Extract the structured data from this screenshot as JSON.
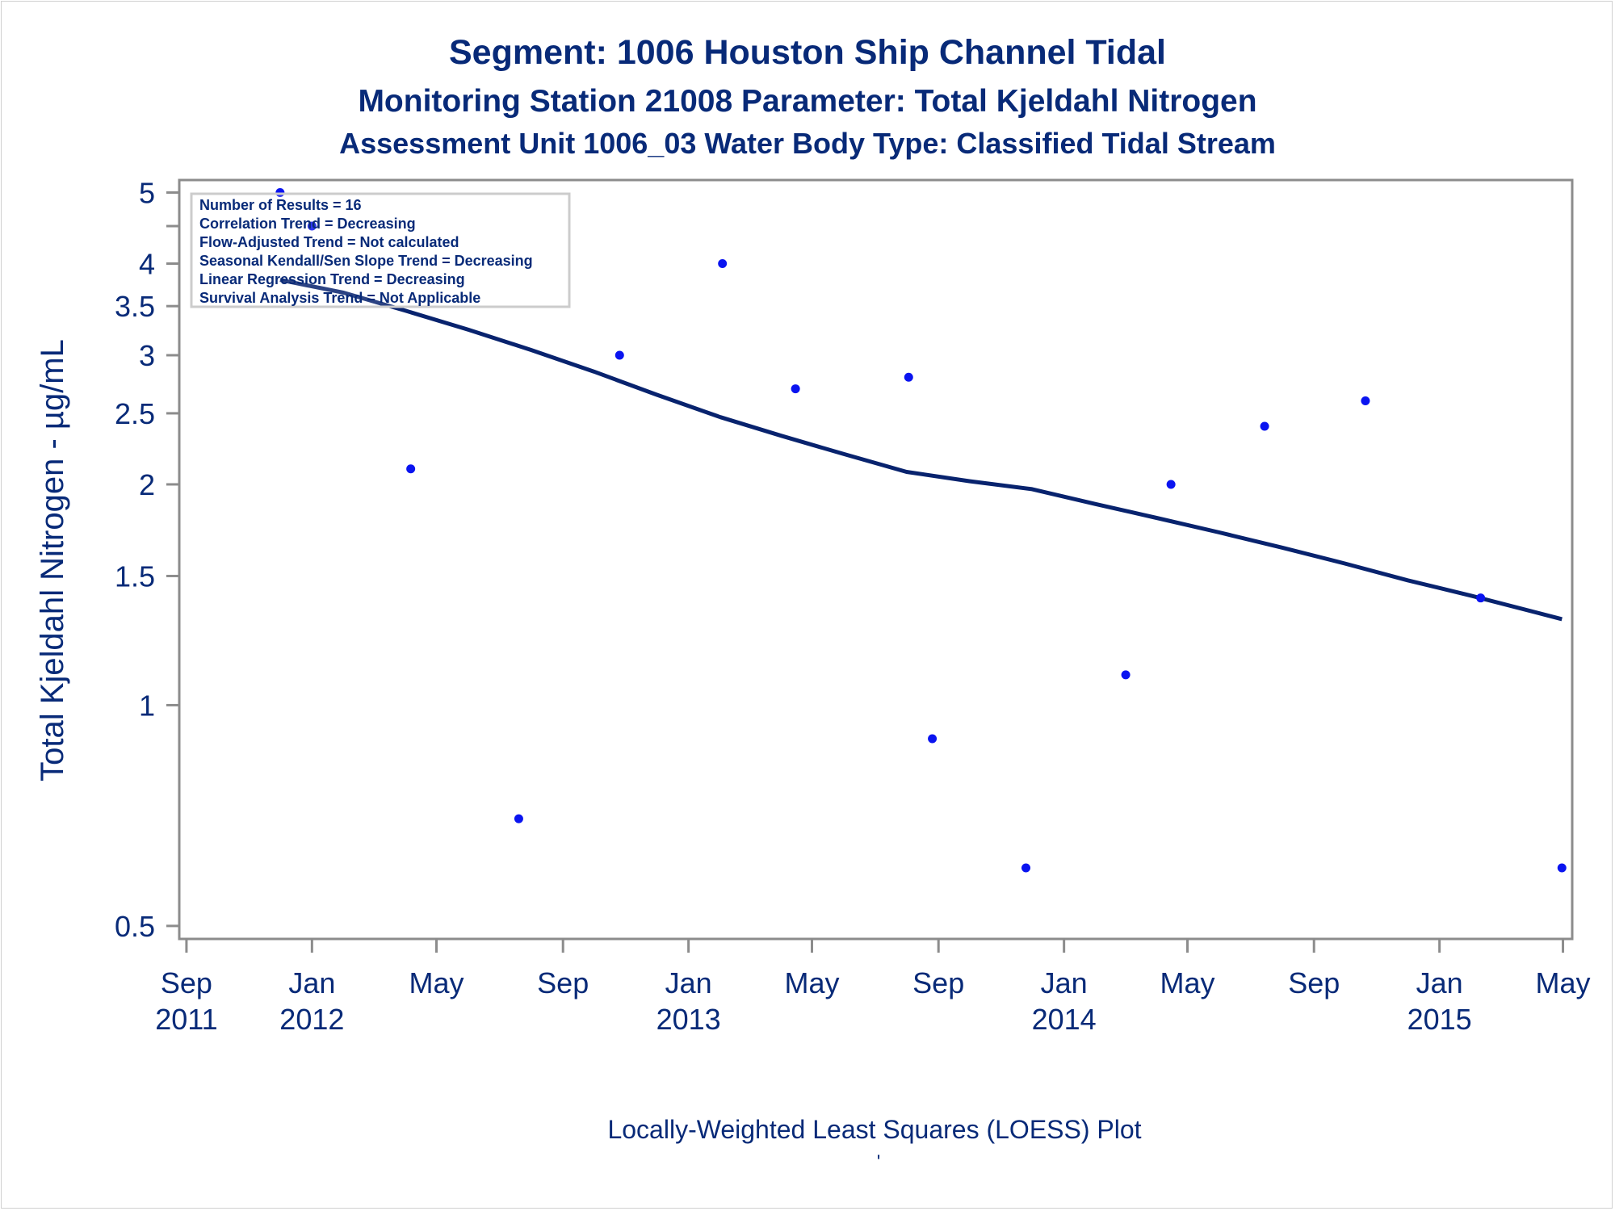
{
  "chart_data": {
    "type": "scatter",
    "title": "Segment: 1006  Houston Ship Channel Tidal",
    "subtitle": "Monitoring Station 21008 Parameter: Total Kjeldahl Nitrogen",
    "subtitle2": "Assessment Unit 1006_03   Water Body Type: Classified Tidal Stream",
    "xlabel": "",
    "ylabel": "Total Kjeldahl Nitrogen -  µg/mL",
    "footnote": "Locally-Weighted Least Squares (LOESS) Plot",
    "footnote2": "'",
    "y_scale": "log",
    "ylim": [
      0.48,
      5.2
    ],
    "xlim": [
      "2011-08-25",
      "2015-05-10"
    ],
    "grid": false,
    "x_ticks": [
      {
        "date": "2011-09-01",
        "month": "Sep",
        "year": "2011"
      },
      {
        "date": "2012-01-01",
        "month": "Jan",
        "year": "2012"
      },
      {
        "date": "2012-05-01",
        "month": "May",
        "year": ""
      },
      {
        "date": "2012-09-01",
        "month": "Sep",
        "year": ""
      },
      {
        "date": "2013-01-01",
        "month": "Jan",
        "year": "2013"
      },
      {
        "date": "2013-05-01",
        "month": "May",
        "year": ""
      },
      {
        "date": "2013-09-01",
        "month": "Sep",
        "year": ""
      },
      {
        "date": "2014-01-01",
        "month": "Jan",
        "year": "2014"
      },
      {
        "date": "2014-05-01",
        "month": "May",
        "year": ""
      },
      {
        "date": "2014-09-01",
        "month": "Sep",
        "year": ""
      },
      {
        "date": "2015-01-01",
        "month": "Jan",
        "year": "2015"
      },
      {
        "date": "2015-05-01",
        "month": "May",
        "year": ""
      }
    ],
    "y_ticks": [
      {
        "value": 0.5,
        "label": "0.5"
      },
      {
        "value": 1,
        "label": "1"
      },
      {
        "value": 1.5,
        "label": "1.5"
      },
      {
        "value": 2,
        "label": "2"
      },
      {
        "value": 2.5,
        "label": "2.5"
      },
      {
        "value": 3,
        "label": "3"
      },
      {
        "value": 3.5,
        "label": "3.5"
      },
      {
        "value": 4,
        "label": "4"
      },
      {
        "value": 5,
        "label": "5"
      }
    ],
    "y_minor_ticks": [
      4.5
    ],
    "legend_position": "top-left",
    "stats": [
      "Number of Results = 16",
      "Correlation Trend = Decreasing",
      "Flow-Adjusted Trend = Not calculated",
      "Seasonal Kendall/Sen Slope Trend = Decreasing",
      "Linear Regression Trend = Decreasing",
      "Survival Analysis Trend = Not Applicable"
    ],
    "points": [
      {
        "x": "2011-12-01",
        "y": 5.0
      },
      {
        "x": "2012-01-01",
        "y": 4.5
      },
      {
        "x": "2012-04-06",
        "y": 2.1
      },
      {
        "x": "2012-07-20",
        "y": 0.7
      },
      {
        "x": "2012-10-26",
        "y": 3.0
      },
      {
        "x": "2013-02-03",
        "y": 4.0
      },
      {
        "x": "2013-04-15",
        "y": 2.7
      },
      {
        "x": "2013-08-03",
        "y": 2.8
      },
      {
        "x": "2013-08-26",
        "y": 0.9
      },
      {
        "x": "2013-11-25",
        "y": 0.6
      },
      {
        "x": "2014-03-02",
        "y": 1.1
      },
      {
        "x": "2014-04-15",
        "y": 2.0
      },
      {
        "x": "2014-07-15",
        "y": 2.4
      },
      {
        "x": "2014-10-21",
        "y": 2.6
      },
      {
        "x": "2015-02-10",
        "y": 1.4
      },
      {
        "x": "2015-04-30",
        "y": 0.6
      }
    ],
    "loess_line": [
      {
        "x": "2011-12-01",
        "y": 3.8
      },
      {
        "x": "2012-02-01",
        "y": 3.65
      },
      {
        "x": "2012-04-01",
        "y": 3.45
      },
      {
        "x": "2012-06-01",
        "y": 3.25
      },
      {
        "x": "2012-08-01",
        "y": 3.05
      },
      {
        "x": "2012-10-01",
        "y": 2.85
      },
      {
        "x": "2012-12-01",
        "y": 2.65
      },
      {
        "x": "2013-02-01",
        "y": 2.47
      },
      {
        "x": "2013-04-01",
        "y": 2.33
      },
      {
        "x": "2013-06-01",
        "y": 2.2
      },
      {
        "x": "2013-08-01",
        "y": 2.08
      },
      {
        "x": "2013-10-01",
        "y": 2.02
      },
      {
        "x": "2013-12-01",
        "y": 1.97
      },
      {
        "x": "2014-02-01",
        "y": 1.88
      },
      {
        "x": "2014-04-01",
        "y": 1.8
      },
      {
        "x": "2014-06-01",
        "y": 1.72
      },
      {
        "x": "2014-08-01",
        "y": 1.64
      },
      {
        "x": "2014-10-01",
        "y": 1.56
      },
      {
        "x": "2014-12-01",
        "y": 1.48
      },
      {
        "x": "2015-02-01",
        "y": 1.41
      },
      {
        "x": "2015-04-30",
        "y": 1.31
      }
    ],
    "colors": {
      "text": "#082a78",
      "points": "#0a14f0",
      "line": "#08236e",
      "axis": "#8c8c8c",
      "legend_border": "#cccccc"
    }
  }
}
